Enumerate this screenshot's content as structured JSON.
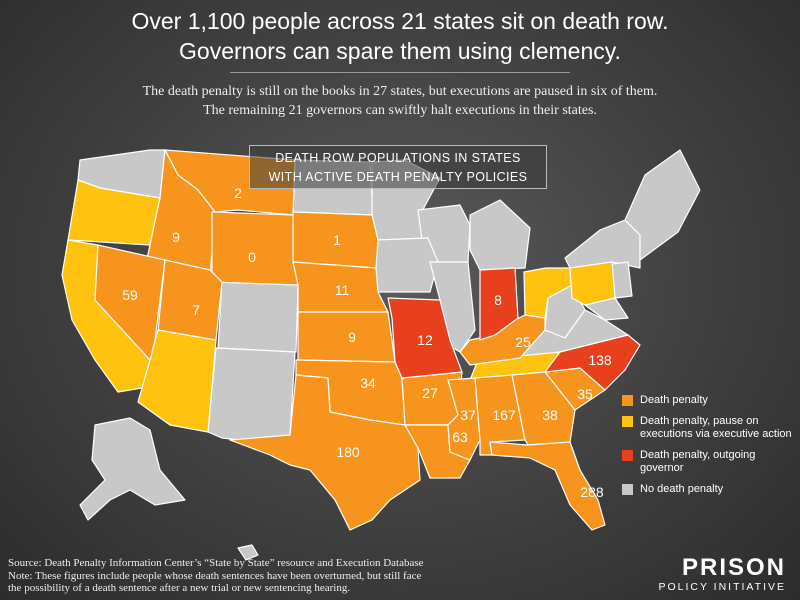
{
  "header": {
    "title_line1": "Over 1,100 people across 21 states sit on death row.",
    "title_line2": "Governors can spare them using clemency.",
    "subtitle_line1": "The death penalty is still on the books in 27 states, but executions are paused in six of them.",
    "subtitle_line2": "The remaining 21 governors can swiftly halt executions in their states."
  },
  "panel": {
    "line1": "DEATH ROW POPULATIONS IN STATES",
    "line2": "WITH ACTIVE DEATH PENALTY POLICIES"
  },
  "colors": {
    "death_penalty": "#f7941d",
    "paused": "#ffc20e",
    "outgoing": "#e8401c",
    "none": "#c8c8c8",
    "border": "#ffffff"
  },
  "legend": [
    {
      "label": "Death penalty",
      "category": "death_penalty"
    },
    {
      "label": "Death penalty, pause on executions via executive action",
      "category": "paused"
    },
    {
      "label": "Death penalty, outgoing governor",
      "category": "outgoing"
    },
    {
      "label": "No death penalty",
      "category": "none"
    }
  ],
  "states": [
    {
      "name": "Montana",
      "value": "2",
      "category": "death_penalty"
    },
    {
      "name": "Idaho",
      "value": "9",
      "category": "death_penalty"
    },
    {
      "name": "Wyoming",
      "value": "0",
      "category": "death_penalty"
    },
    {
      "name": "South Dakota",
      "value": "1",
      "category": "death_penalty"
    },
    {
      "name": "Nevada",
      "value": "59",
      "category": "death_penalty"
    },
    {
      "name": "Utah",
      "value": "7",
      "category": "death_penalty"
    },
    {
      "name": "Nebraska",
      "value": "11",
      "category": "death_penalty"
    },
    {
      "name": "Kansas",
      "value": "9",
      "category": "death_penalty"
    },
    {
      "name": "Missouri",
      "value": "12",
      "category": "outgoing"
    },
    {
      "name": "Indiana",
      "value": "8",
      "category": "outgoing"
    },
    {
      "name": "Kentucky",
      "value": "25",
      "category": "death_penalty"
    },
    {
      "name": "North Carolina",
      "value": "138",
      "category": "outgoing"
    },
    {
      "name": "Oklahoma",
      "value": "34",
      "category": "death_penalty"
    },
    {
      "name": "Arkansas",
      "value": "27",
      "category": "death_penalty"
    },
    {
      "name": "South Carolina",
      "value": "35",
      "category": "death_penalty"
    },
    {
      "name": "Texas",
      "value": "180",
      "category": "death_penalty"
    },
    {
      "name": "Mississippi",
      "value": "37",
      "category": "death_penalty"
    },
    {
      "name": "Alabama",
      "value": "167",
      "category": "death_penalty"
    },
    {
      "name": "Georgia",
      "value": "38",
      "category": "death_penalty"
    },
    {
      "name": "Louisiana",
      "value": "63",
      "category": "death_penalty"
    },
    {
      "name": "Florida",
      "value": "288",
      "category": "death_penalty"
    },
    {
      "name": "Oregon",
      "value": "",
      "category": "paused"
    },
    {
      "name": "California",
      "value": "",
      "category": "paused"
    },
    {
      "name": "Arizona",
      "value": "",
      "category": "paused"
    },
    {
      "name": "Ohio",
      "value": "",
      "category": "paused"
    },
    {
      "name": "Pennsylvania",
      "value": "",
      "category": "paused"
    },
    {
      "name": "Tennessee",
      "value": "",
      "category": "paused"
    }
  ],
  "footer": {
    "source": "Source: Death Penalty Information Center’s “State by State” resource and Execution Database",
    "note_line1": "Note: These figures include people whose death sentences have been overturned, but still face",
    "note_line2": "the possibility of a death sentence after a new trial or new sentencing hearing."
  },
  "logo": {
    "line1": "PRISON",
    "line2": "POLICY INITIATIVE"
  }
}
